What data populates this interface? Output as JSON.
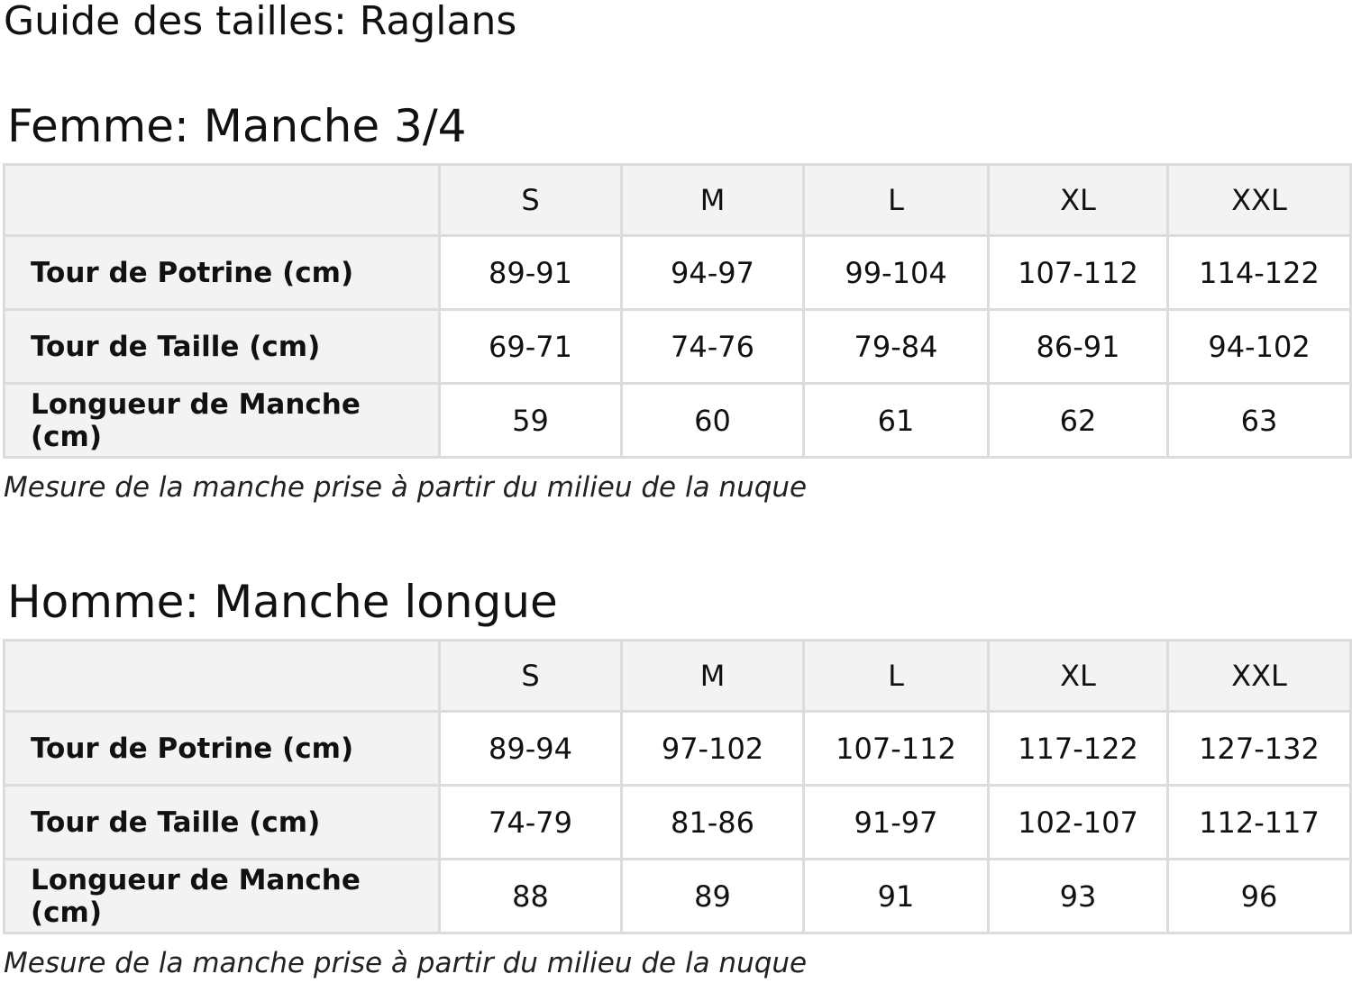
{
  "title": "Guide des tailles: Raglans",
  "sizes": [
    "S",
    "M",
    "L",
    "XL",
    "XXL"
  ],
  "tables": [
    {
      "heading": "Femme: Manche 3/4",
      "rows": [
        {
          "label": "Tour de Potrine (cm)",
          "values": [
            "89-91",
            "94-97",
            "99-104",
            "107-112",
            "114-122"
          ]
        },
        {
          "label": "Tour de Taille (cm)",
          "values": [
            "69-71",
            "74-76",
            "79-84",
            "86-91",
            "94-102"
          ]
        },
        {
          "label": "Longueur de Manche (cm)",
          "values": [
            "59",
            "60",
            "61",
            "62",
            "63"
          ]
        }
      ],
      "note": "Mesure de la manche prise à partir du milieu de la nuque"
    },
    {
      "heading": "Homme: Manche longue",
      "rows": [
        {
          "label": "Tour de Potrine (cm)",
          "values": [
            "89-94",
            "97-102",
            "107-112",
            "117-122",
            "127-132"
          ]
        },
        {
          "label": "Tour de Taille (cm)",
          "values": [
            "74-79",
            "81-86",
            "91-97",
            "102-107",
            "112-117"
          ]
        },
        {
          "label": "Longueur de Manche (cm)",
          "values": [
            "88",
            "89",
            "91",
            "93",
            "96"
          ]
        }
      ],
      "note": "Mesure de la manche prise à partir du milieu de la nuque"
    }
  ]
}
